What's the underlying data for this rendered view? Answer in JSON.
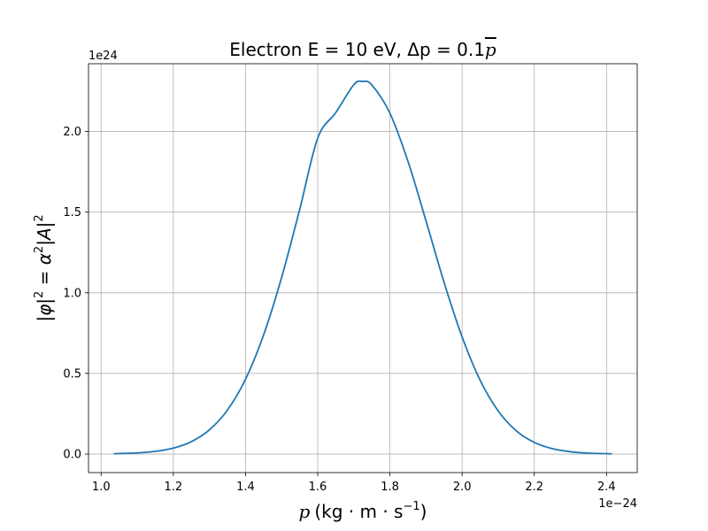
{
  "chart_data": {
    "type": "line",
    "title": {
      "text": "Electron E = 10 eV, Δp = 0.1",
      "symbol": "p"
    },
    "xlabel": {
      "var": "p",
      "unit": "(kg · m · s",
      "exp": "−1",
      "close": ")"
    },
    "ylabel": {
      "p1": "|φ|",
      "e1": "2",
      "p2": " = α",
      "e2": "2",
      "p3": "|A|",
      "e3": "2"
    },
    "x_offset_label": "1e−24",
    "y_offset_label": "1e24",
    "x_scale_exponent": -24,
    "y_scale_exponent": 24,
    "xlim": [
      0.965,
      2.485
    ],
    "ylim": [
      -0.115,
      2.42
    ],
    "x_ticks": [
      1.0,
      1.2,
      1.4,
      1.6,
      1.8,
      2.0,
      2.2,
      2.4
    ],
    "x_tick_labels": [
      "1.0",
      "1.2",
      "1.4",
      "1.6",
      "1.8",
      "2.0",
      "2.2",
      "2.4"
    ],
    "y_ticks": [
      0.0,
      0.5,
      1.0,
      1.5,
      2.0
    ],
    "y_tick_labels": [
      "0.0",
      "0.5",
      "1.0",
      "1.5",
      "2.0"
    ],
    "grid": true,
    "series": [
      {
        "color": "#1f77b4",
        "x": [
          1.035,
          1.1,
          1.15,
          1.2,
          1.25,
          1.3,
          1.35,
          1.4,
          1.45,
          1.5,
          1.55,
          1.6,
          1.65,
          1.7,
          1.725,
          1.75,
          1.8,
          1.85,
          1.9,
          1.95,
          2.0,
          2.05,
          2.1,
          2.15,
          2.2,
          2.25,
          2.3,
          2.35,
          2.415
        ],
        "y": [
          0.0024,
          0.0069,
          0.0165,
          0.0367,
          0.0768,
          0.15,
          0.273,
          0.464,
          0.738,
          1.095,
          1.516,
          1.959,
          2.117,
          2.29,
          2.31,
          2.288,
          2.113,
          1.815,
          1.445,
          1.064,
          0.726,
          0.457,
          0.267,
          0.144,
          0.072,
          0.0334,
          0.0144,
          0.00574,
          0.0017
        ]
      }
    ]
  }
}
